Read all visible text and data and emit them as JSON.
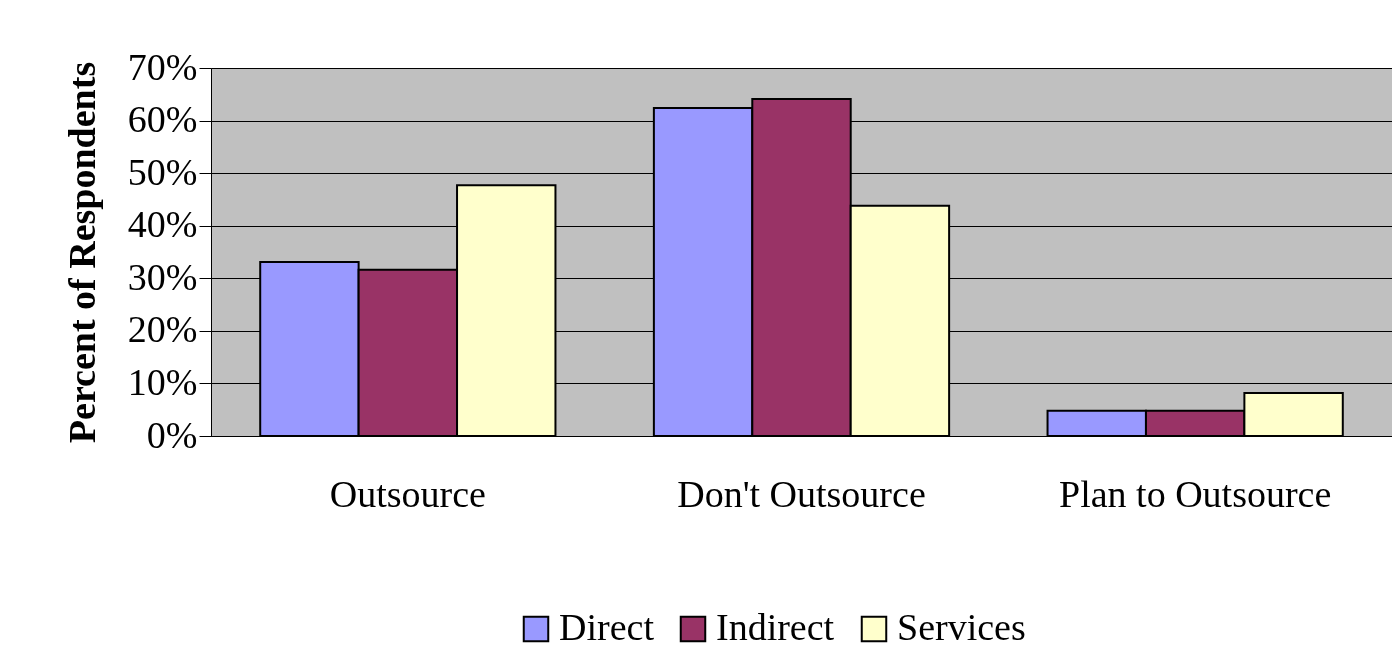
{
  "chart_data": {
    "type": "bar",
    "ylabel": "Percent of Respondents",
    "categories": [
      "Outsource",
      "Don't Outsource",
      "Plan to Outsource"
    ],
    "series": [
      {
        "name": "Direct",
        "color": "#9999ff",
        "values": [
          33.1,
          62.4,
          4.8
        ]
      },
      {
        "name": "Indirect",
        "color": "#993366",
        "values": [
          31.6,
          64.1,
          4.8
        ]
      },
      {
        "name": "Services",
        "color": "#ffffcc",
        "values": [
          47.7,
          43.8,
          8.2
        ]
      }
    ],
    "ylim": [
      0,
      70
    ],
    "yticks": [
      {
        "value": 0,
        "label": "0%"
      },
      {
        "value": 10,
        "label": "10%"
      },
      {
        "value": 20,
        "label": "20%"
      },
      {
        "value": 30,
        "label": "30%"
      },
      {
        "value": 40,
        "label": "40%"
      },
      {
        "value": 50,
        "label": "50%"
      },
      {
        "value": 60,
        "label": "60%"
      },
      {
        "value": 70,
        "label": "70%"
      }
    ],
    "grid": "y",
    "legend": "bottom"
  }
}
